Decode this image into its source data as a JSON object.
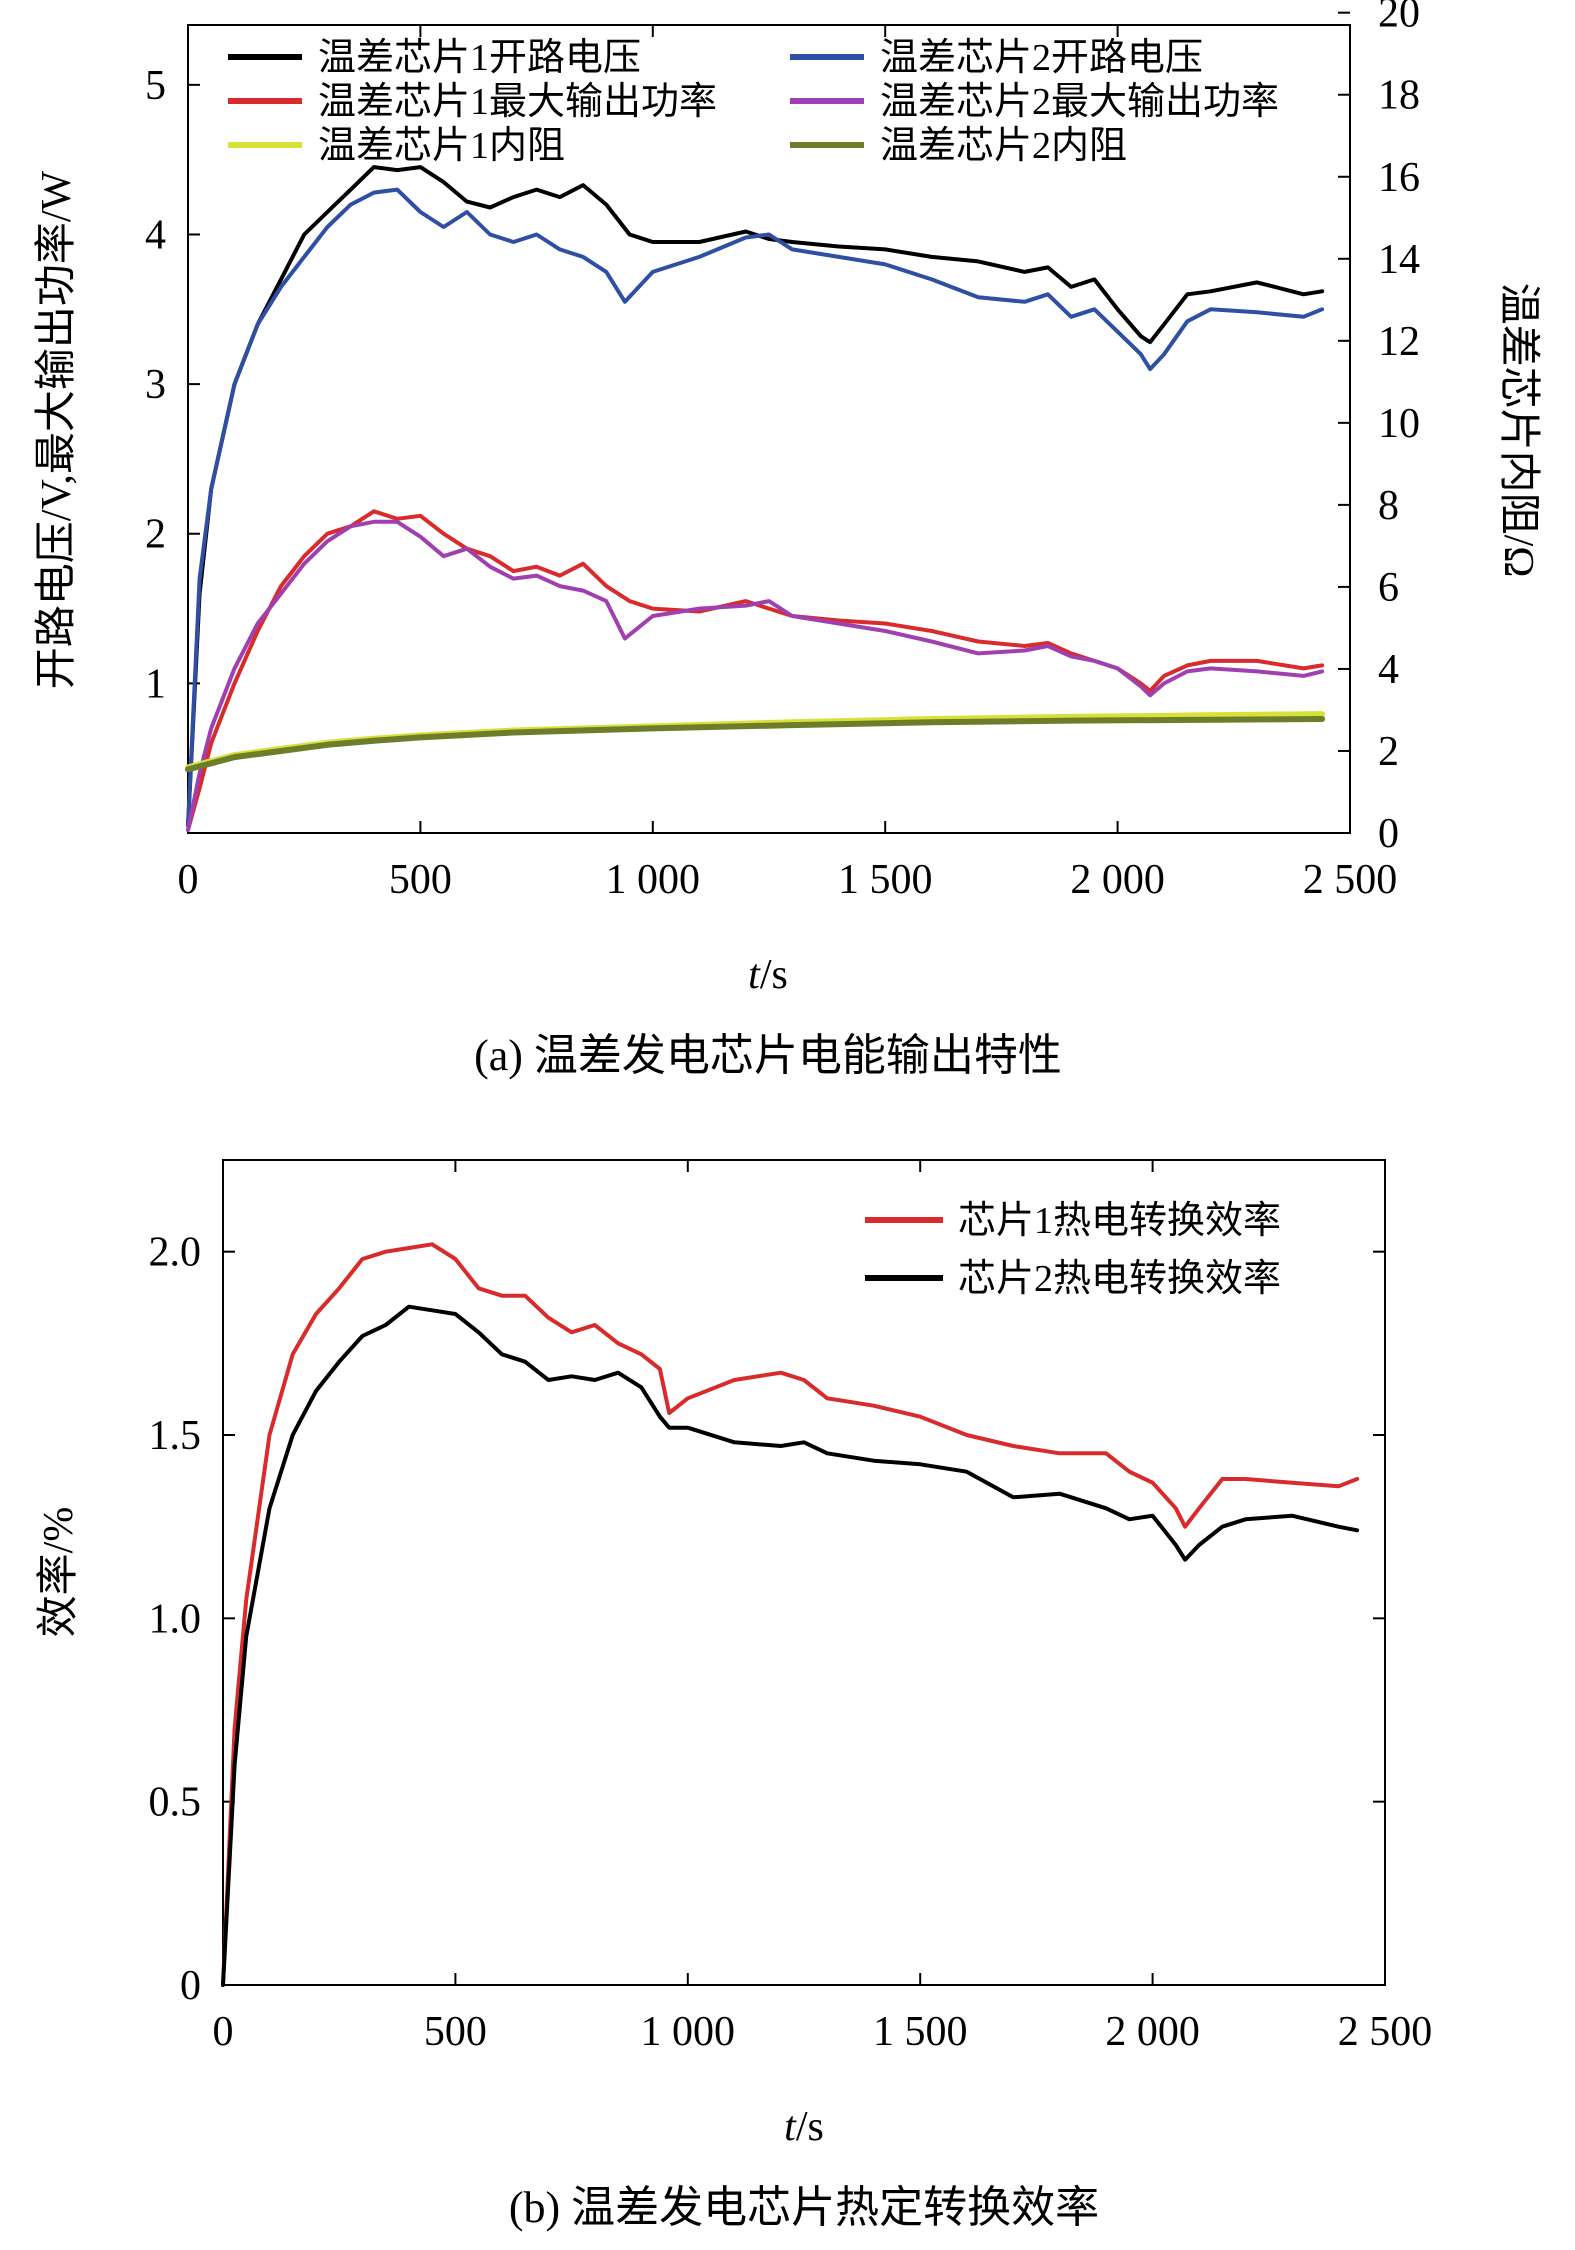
{
  "chart_data": [
    {
      "type": "line",
      "caption": "(a) 温差发电芯片电能输出特性",
      "xlabel_italic": "t",
      "xlabel_unit": "/s",
      "ylabel": "开路电压/V,最大输出功率/W",
      "y2label": "温差芯片内阻/Ω",
      "xlim": [
        0,
        2500
      ],
      "ylim": [
        0,
        5.4
      ],
      "y2lim": [
        0,
        19.7
      ],
      "xticks": [
        0,
        500,
        1000,
        1500,
        2000,
        2500
      ],
      "xtick_labels": [
        "0",
        "500",
        "1 000",
        "1 500",
        "2 000",
        "2 500"
      ],
      "yticks": [
        1,
        2,
        3,
        4,
        5
      ],
      "ytick_labels": [
        "1",
        "2",
        "3",
        "4",
        "5"
      ],
      "y2ticks": [
        0,
        2,
        4,
        6,
        8,
        10,
        12,
        14,
        16,
        18,
        20
      ],
      "y2tick_labels": [
        "0",
        "2",
        "4",
        "6",
        "8",
        "10",
        "12",
        "14",
        "16",
        "18",
        "20"
      ],
      "legend": "top",
      "series": [
        {
          "name": "温差芯片1开路电压",
          "color": "#000000",
          "axis": "left",
          "x": [
            0,
            25,
            50,
            100,
            150,
            200,
            250,
            300,
            350,
            400,
            450,
            500,
            550,
            600,
            650,
            700,
            750,
            800,
            850,
            900,
            950,
            1000,
            1100,
            1200,
            1250,
            1300,
            1400,
            1500,
            1600,
            1700,
            1800,
            1850,
            1900,
            1950,
            2000,
            2050,
            2070,
            2100,
            2150,
            2200,
            2300,
            2400,
            2440
          ],
          "y": [
            0.05,
            1.6,
            2.3,
            3.0,
            3.4,
            3.7,
            4.0,
            4.15,
            4.3,
            4.45,
            4.43,
            4.45,
            4.35,
            4.22,
            4.18,
            4.25,
            4.3,
            4.25,
            4.33,
            4.2,
            4.0,
            3.95,
            3.95,
            4.02,
            3.97,
            3.95,
            3.92,
            3.9,
            3.85,
            3.82,
            3.75,
            3.78,
            3.65,
            3.7,
            3.5,
            3.32,
            3.28,
            3.4,
            3.6,
            3.62,
            3.68,
            3.6,
            3.62
          ]
        },
        {
          "name": "温差芯片2开路电压",
          "color": "#2E4FA3",
          "axis": "left",
          "x": [
            0,
            25,
            50,
            100,
            150,
            200,
            250,
            300,
            350,
            400,
            450,
            500,
            550,
            600,
            650,
            700,
            750,
            800,
            850,
            900,
            940,
            1000,
            1100,
            1200,
            1250,
            1300,
            1400,
            1500,
            1600,
            1700,
            1800,
            1850,
            1900,
            1950,
            2000,
            2050,
            2070,
            2100,
            2150,
            2200,
            2300,
            2400,
            2440
          ],
          "y": [
            0.05,
            1.7,
            2.3,
            3.0,
            3.4,
            3.65,
            3.85,
            4.05,
            4.2,
            4.28,
            4.3,
            4.15,
            4.05,
            4.15,
            4.0,
            3.95,
            4.0,
            3.9,
            3.85,
            3.75,
            3.55,
            3.75,
            3.85,
            3.98,
            4.0,
            3.9,
            3.85,
            3.8,
            3.7,
            3.58,
            3.55,
            3.6,
            3.45,
            3.5,
            3.35,
            3.2,
            3.1,
            3.2,
            3.42,
            3.5,
            3.48,
            3.45,
            3.5
          ]
        },
        {
          "name": "温差芯片1最大输出功率",
          "color": "#D92B2B",
          "axis": "left",
          "x": [
            0,
            25,
            50,
            100,
            150,
            200,
            250,
            300,
            350,
            400,
            450,
            500,
            550,
            600,
            650,
            700,
            750,
            800,
            850,
            900,
            950,
            1000,
            1100,
            1200,
            1250,
            1300,
            1400,
            1500,
            1600,
            1700,
            1800,
            1850,
            1900,
            1950,
            2000,
            2050,
            2070,
            2100,
            2150,
            2200,
            2300,
            2400,
            2440
          ],
          "y": [
            0.02,
            0.3,
            0.6,
            1.0,
            1.35,
            1.65,
            1.85,
            2.0,
            2.05,
            2.15,
            2.1,
            2.12,
            2.0,
            1.9,
            1.85,
            1.75,
            1.78,
            1.72,
            1.8,
            1.65,
            1.55,
            1.5,
            1.48,
            1.55,
            1.5,
            1.45,
            1.42,
            1.4,
            1.35,
            1.28,
            1.25,
            1.27,
            1.2,
            1.15,
            1.1,
            1.0,
            0.95,
            1.05,
            1.12,
            1.15,
            1.15,
            1.1,
            1.12
          ]
        },
        {
          "name": "温差芯片2最大输出功率",
          "color": "#A040B0",
          "axis": "left",
          "x": [
            0,
            25,
            50,
            100,
            150,
            200,
            250,
            300,
            350,
            400,
            450,
            500,
            550,
            600,
            650,
            700,
            750,
            800,
            850,
            900,
            940,
            1000,
            1100,
            1200,
            1250,
            1300,
            1400,
            1500,
            1600,
            1700,
            1800,
            1850,
            1900,
            1950,
            2000,
            2050,
            2070,
            2100,
            2150,
            2200,
            2300,
            2400,
            2440
          ],
          "y": [
            0.02,
            0.4,
            0.7,
            1.1,
            1.4,
            1.6,
            1.8,
            1.95,
            2.05,
            2.08,
            2.08,
            1.98,
            1.85,
            1.9,
            1.78,
            1.7,
            1.72,
            1.65,
            1.62,
            1.55,
            1.3,
            1.45,
            1.5,
            1.52,
            1.55,
            1.45,
            1.4,
            1.35,
            1.28,
            1.2,
            1.22,
            1.25,
            1.18,
            1.15,
            1.1,
            0.98,
            0.92,
            1.0,
            1.08,
            1.1,
            1.08,
            1.05,
            1.08
          ]
        },
        {
          "name": "温差芯片1内阻",
          "color": "#D8E03A",
          "axis": "right",
          "x": [
            0,
            50,
            100,
            200,
            300,
            400,
            500,
            700,
            1000,
            1300,
            1600,
            1900,
            2200,
            2440
          ],
          "y": [
            1.6,
            1.75,
            1.9,
            2.05,
            2.2,
            2.3,
            2.38,
            2.5,
            2.6,
            2.7,
            2.78,
            2.83,
            2.87,
            2.9
          ]
        },
        {
          "name": "温差芯片2内阻",
          "color": "#6E7D2A",
          "axis": "right",
          "x": [
            0,
            50,
            100,
            200,
            300,
            400,
            500,
            700,
            1000,
            1300,
            1600,
            1900,
            2200,
            2440
          ],
          "y": [
            1.55,
            1.7,
            1.85,
            2.0,
            2.15,
            2.25,
            2.33,
            2.45,
            2.55,
            2.63,
            2.7,
            2.74,
            2.76,
            2.78
          ]
        }
      ]
    },
    {
      "type": "line",
      "caption": "(b) 温差发电芯片热定转换效率",
      "xlabel_italic": "t",
      "xlabel_unit": "/s",
      "ylabel": "效率/%",
      "xlim": [
        0,
        2500
      ],
      "ylim": [
        0,
        2.25
      ],
      "xticks": [
        0,
        500,
        1000,
        1500,
        2000,
        2500
      ],
      "xtick_labels": [
        "0",
        "500",
        "1 000",
        "1 500",
        "2 000",
        "2 500"
      ],
      "yticks": [
        0,
        0.5,
        1.0,
        1.5,
        2.0
      ],
      "ytick_labels": [
        "0",
        "0.5",
        "1.0",
        "1.5",
        "2.0"
      ],
      "legend": "top-right",
      "series": [
        {
          "name": "芯片1热电转换效率",
          "color": "#D92B2B",
          "x": [
            0,
            25,
            50,
            100,
            150,
            200,
            250,
            300,
            350,
            400,
            450,
            500,
            550,
            600,
            650,
            700,
            750,
            800,
            850,
            900,
            940,
            960,
            1000,
            1100,
            1200,
            1250,
            1300,
            1400,
            1500,
            1600,
            1700,
            1800,
            1900,
            1950,
            2000,
            2050,
            2070,
            2100,
            2150,
            2200,
            2300,
            2400,
            2440
          ],
          "y": [
            0.0,
            0.7,
            1.05,
            1.5,
            1.72,
            1.83,
            1.9,
            1.98,
            2.0,
            2.01,
            2.02,
            1.98,
            1.9,
            1.88,
            1.88,
            1.82,
            1.78,
            1.8,
            1.75,
            1.72,
            1.68,
            1.56,
            1.6,
            1.65,
            1.67,
            1.65,
            1.6,
            1.58,
            1.55,
            1.5,
            1.47,
            1.45,
            1.45,
            1.4,
            1.37,
            1.3,
            1.25,
            1.3,
            1.38,
            1.38,
            1.37,
            1.36,
            1.38
          ]
        },
        {
          "name": "芯片2热电转换效率",
          "color": "#000000",
          "x": [
            0,
            25,
            50,
            100,
            150,
            200,
            250,
            300,
            350,
            400,
            450,
            500,
            550,
            600,
            650,
            700,
            750,
            800,
            850,
            900,
            940,
            960,
            1000,
            1100,
            1200,
            1250,
            1300,
            1400,
            1500,
            1600,
            1700,
            1800,
            1900,
            1950,
            2000,
            2050,
            2070,
            2100,
            2150,
            2200,
            2300,
            2400,
            2440
          ],
          "y": [
            0.0,
            0.6,
            0.95,
            1.3,
            1.5,
            1.62,
            1.7,
            1.77,
            1.8,
            1.85,
            1.84,
            1.83,
            1.78,
            1.72,
            1.7,
            1.65,
            1.66,
            1.65,
            1.67,
            1.63,
            1.55,
            1.52,
            1.52,
            1.48,
            1.47,
            1.48,
            1.45,
            1.43,
            1.42,
            1.4,
            1.33,
            1.34,
            1.3,
            1.27,
            1.28,
            1.2,
            1.16,
            1.2,
            1.25,
            1.27,
            1.28,
            1.25,
            1.24
          ]
        }
      ]
    }
  ]
}
